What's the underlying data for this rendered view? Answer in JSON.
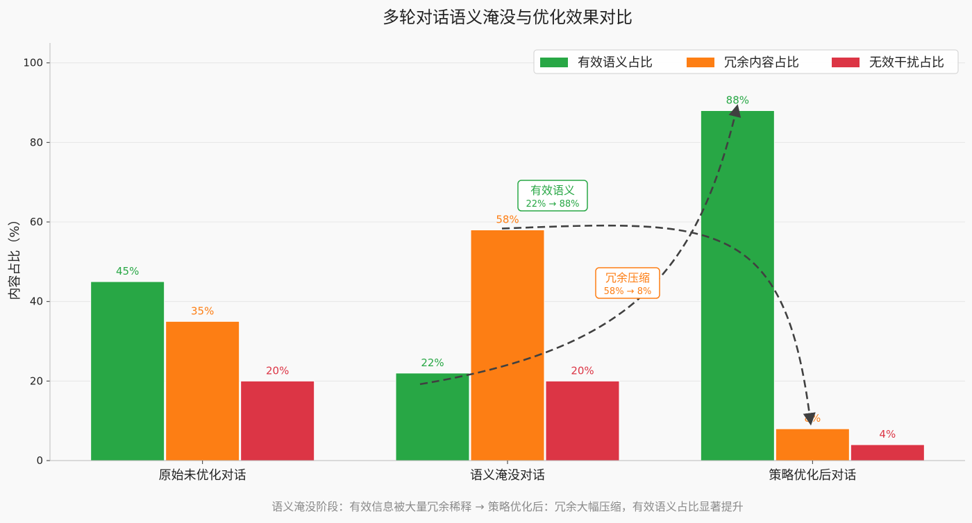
{
  "chart_data": {
    "type": "bar",
    "title": "多轮对话语义淹没与优化效果对比",
    "ylabel": "内容占比（%）",
    "xlabel": "",
    "ylim": [
      0,
      105
    ],
    "yticks": [
      0,
      20,
      40,
      60,
      80,
      100
    ],
    "grid": "y",
    "legend_position": "top-right",
    "categories": [
      "原始未优化对话",
      "语义淹没对话",
      "策略优化后对话"
    ],
    "series": [
      {
        "name": "有效语义占比",
        "color": "#28a745",
        "values": [
          45,
          22,
          88
        ],
        "labels": [
          "45%",
          "22%",
          "88%"
        ]
      },
      {
        "name": "冗余内容占比",
        "color": "#fd7e14",
        "values": [
          35,
          58,
          8
        ],
        "labels": [
          "35%",
          "58%",
          "8%"
        ]
      },
      {
        "name": "无效干扰占比",
        "color": "#dc3545",
        "values": [
          20,
          20,
          4
        ],
        "labels": [
          "20%",
          "20%",
          "4%"
        ]
      }
    ],
    "annotations": [
      {
        "name": "effective-semantic",
        "title": "有效语义",
        "detail": "22%  →  88%",
        "color": "#28a745",
        "from": {
          "category": "语义淹没对话",
          "value": 22
        },
        "to": {
          "category": "策略优化后对话",
          "value": 88
        }
      },
      {
        "name": "redundancy-compression",
        "title": "冗余压缩",
        "detail": "58%  →  8%",
        "color": "#fd7e14",
        "from": {
          "category": "语义淹没对话",
          "value": 58
        },
        "to": {
          "category": "策略优化后对话",
          "value": 8
        }
      }
    ],
    "caption": "语义淹没阶段：有效信息被大量冗余稀释  →  策略优化后：冗余大幅压缩，有效语义占比显著提升"
  }
}
